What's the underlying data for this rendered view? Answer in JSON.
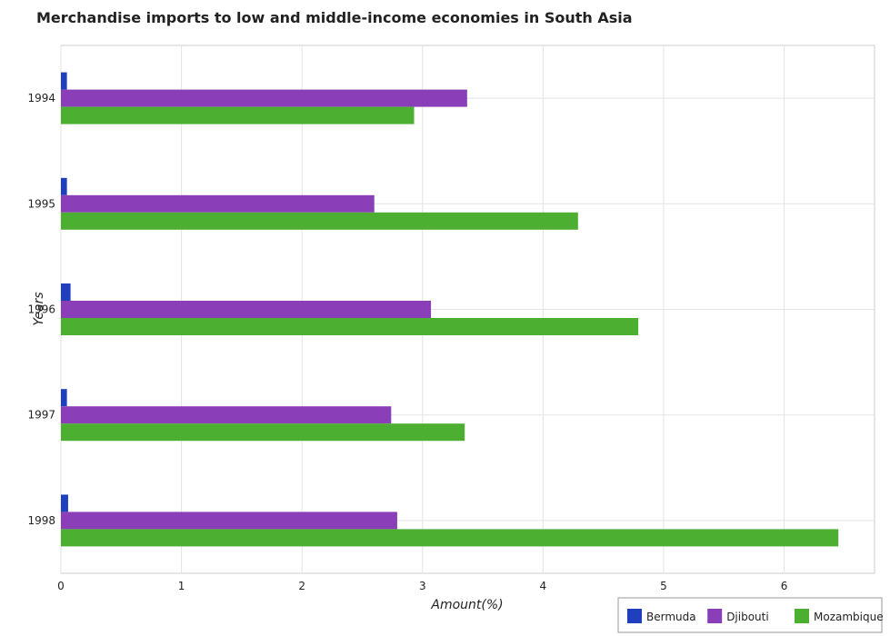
{
  "chart_data": {
    "type": "bar",
    "orientation": "horizontal",
    "title": "Merchandise imports to low and middle-income economies in South Asia",
    "xlabel": "Amount(%)",
    "ylabel": "Years",
    "categories": [
      "1994",
      "1995",
      "1996",
      "1997",
      "1998"
    ],
    "xlim": [
      0,
      6.75
    ],
    "xticks": [
      "0",
      "1",
      "2",
      "3",
      "4",
      "5",
      "6"
    ],
    "grid": true,
    "legend_position": "bottom-right",
    "series": [
      {
        "name": "Bermuda",
        "color": "#1f3fbf",
        "values": [
          0.05,
          0.05,
          0.08,
          0.05,
          0.06
        ]
      },
      {
        "name": "Djibouti",
        "color": "#8a3fb8",
        "values": [
          3.37,
          2.6,
          3.07,
          2.74,
          2.79
        ]
      },
      {
        "name": "Mozambique",
        "color": "#4caf32",
        "values": [
          2.93,
          4.29,
          4.79,
          3.35,
          6.45
        ]
      }
    ]
  }
}
